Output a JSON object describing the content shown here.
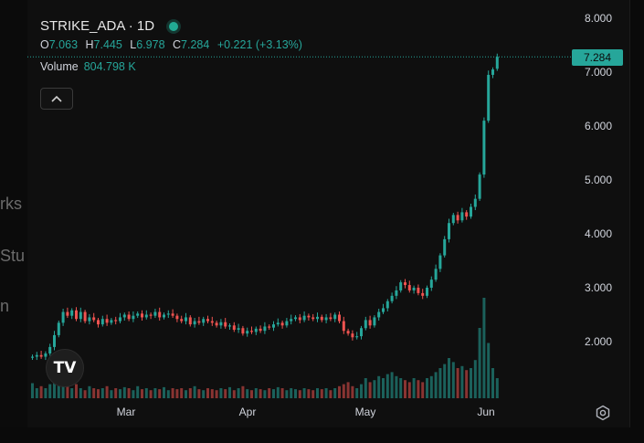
{
  "bleed_texts": [
    "rks",
    "Stu",
    "n"
  ],
  "legend": {
    "symbol": "STRIKE_ADA · 1D",
    "open_label": "O",
    "open_value": "7.063",
    "high_label": "H",
    "high_value": "7.445",
    "low_label": "L",
    "low_value": "6.978",
    "close_label": "C",
    "close_value": "7.284",
    "change": "+0.221 (+3.13%)",
    "volume_label": "Volume",
    "volume_value": "804.798 K"
  },
  "collapse_icon": "chevron-up-icon",
  "current_price_tag": "7.284",
  "logo_text": "TV",
  "settings_icon": "gear-icon",
  "colors": {
    "up": "#26a69a",
    "down": "#ef5350",
    "background": "#0f0f0f"
  },
  "chart_data": {
    "type": "candlestick",
    "x_ticks": [
      "Mar",
      "Apr",
      "May",
      "Jun"
    ],
    "y_ticks": [
      "2.000",
      "3.000",
      "4.000",
      "5.000",
      "6.000",
      "7.000",
      "8.000"
    ],
    "ylim": [
      1.0,
      8.3
    ],
    "last_price": 7.284,
    "closes": [
      1.72,
      1.75,
      1.72,
      1.78,
      1.9,
      2.12,
      2.35,
      2.55,
      2.48,
      2.58,
      2.42,
      2.55,
      2.38,
      2.45,
      2.4,
      2.32,
      2.42,
      2.35,
      2.4,
      2.38,
      2.45,
      2.5,
      2.42,
      2.48,
      2.52,
      2.45,
      2.5,
      2.48,
      2.55,
      2.45,
      2.5,
      2.52,
      2.48,
      2.42,
      2.38,
      2.45,
      2.32,
      2.38,
      2.35,
      2.42,
      2.38,
      2.35,
      2.3,
      2.36,
      2.28,
      2.3,
      2.22,
      2.25,
      2.15,
      2.2,
      2.18,
      2.24,
      2.2,
      2.28,
      2.26,
      2.32,
      2.35,
      2.3,
      2.38,
      2.42,
      2.45,
      2.4,
      2.48,
      2.45,
      2.42,
      2.46,
      2.4,
      2.45,
      2.42,
      2.5,
      2.38,
      2.2,
      2.15,
      2.08,
      2.1,
      2.25,
      2.4,
      2.3,
      2.45,
      2.55,
      2.62,
      2.75,
      2.85,
      2.95,
      3.1,
      3.05,
      2.95,
      3.0,
      2.9,
      2.85,
      3.0,
      3.15,
      3.35,
      3.6,
      3.9,
      4.2,
      4.35,
      4.25,
      4.4,
      4.32,
      4.5,
      4.65,
      5.1,
      6.1,
      6.95,
      7.05,
      7.284
    ],
    "volumes": [
      0.15,
      0.1,
      0.12,
      0.1,
      0.14,
      0.18,
      0.25,
      0.2,
      0.12,
      0.1,
      0.14,
      0.1,
      0.08,
      0.12,
      0.1,
      0.09,
      0.1,
      0.12,
      0.08,
      0.1,
      0.09,
      0.11,
      0.1,
      0.08,
      0.12,
      0.09,
      0.1,
      0.08,
      0.1,
      0.09,
      0.11,
      0.08,
      0.1,
      0.09,
      0.1,
      0.08,
      0.1,
      0.12,
      0.09,
      0.08,
      0.1,
      0.09,
      0.08,
      0.1,
      0.09,
      0.11,
      0.08,
      0.1,
      0.12,
      0.09,
      0.08,
      0.1,
      0.09,
      0.08,
      0.1,
      0.09,
      0.11,
      0.1,
      0.08,
      0.1,
      0.09,
      0.08,
      0.1,
      0.09,
      0.08,
      0.1,
      0.09,
      0.1,
      0.08,
      0.1,
      0.12,
      0.14,
      0.16,
      0.12,
      0.1,
      0.14,
      0.2,
      0.16,
      0.18,
      0.22,
      0.2,
      0.24,
      0.26,
      0.22,
      0.2,
      0.18,
      0.16,
      0.2,
      0.18,
      0.16,
      0.2,
      0.22,
      0.26,
      0.3,
      0.34,
      0.4,
      0.36,
      0.3,
      0.32,
      0.28,
      0.3,
      0.38,
      0.7,
      1.0,
      0.55,
      0.3,
      0.2
    ]
  }
}
